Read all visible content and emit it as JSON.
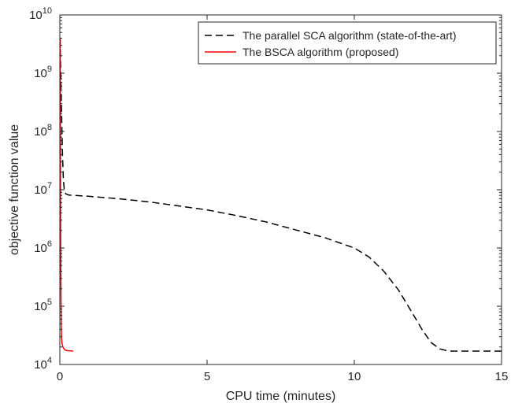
{
  "chart_data": {
    "type": "line",
    "title": "",
    "xlabel": "CPU time (minutes)",
    "ylabel": "objective function value",
    "xlim": [
      0,
      15
    ],
    "ylim": [
      10000,
      10000000000
    ],
    "yscale": "log",
    "x_ticks": [
      0,
      5,
      10,
      15
    ],
    "y_ticks": [
      {
        "value": 10000,
        "base": "10",
        "exp": "4"
      },
      {
        "value": 100000,
        "base": "10",
        "exp": "5"
      },
      {
        "value": 1000000,
        "base": "10",
        "exp": "6"
      },
      {
        "value": 10000000,
        "base": "10",
        "exp": "7"
      },
      {
        "value": 100000000,
        "base": "10",
        "exp": "8"
      },
      {
        "value": 1000000000,
        "base": "10",
        "exp": "9"
      },
      {
        "value": 10000000000,
        "base": "10",
        "exp": "10"
      }
    ],
    "grid": false,
    "legend_position": "top-right",
    "series": [
      {
        "name": "The parallel SCA algorithm (state-of-the-art)",
        "color": "#000000",
        "style": "dashed",
        "x": [
          0.01,
          0.03,
          0.06,
          0.09,
          0.12,
          0.15,
          0.2,
          0.3,
          1,
          2,
          3,
          4,
          5,
          6,
          7,
          8,
          9,
          10,
          10.5,
          11,
          11.5,
          12,
          12.3,
          12.6,
          12.9,
          13.1,
          13.3,
          13.5,
          14,
          14.5,
          15
        ],
        "y": [
          3900000000,
          1000000000,
          200000000,
          40000000,
          15000000,
          10000000,
          8500000,
          8100000,
          7700000,
          7000000,
          6200000,
          5300000,
          4500000,
          3600000,
          2800000,
          2050000,
          1500000,
          1000000,
          700000,
          400000,
          190000,
          72000,
          40000,
          24000,
          18500,
          17500,
          17000,
          17000,
          17000,
          17000,
          17000
        ]
      },
      {
        "name": "The BSCA algorithm (proposed)",
        "color": "#ff0000",
        "style": "solid",
        "x": [
          0.01,
          0.02,
          0.03,
          0.04,
          0.05,
          0.06,
          0.08,
          0.12,
          0.2,
          0.3,
          0.45
        ],
        "y": [
          3800000000,
          100000000,
          1000000,
          120000,
          45000,
          28000,
          22000,
          19000,
          17500,
          17200,
          17000
        ]
      }
    ]
  }
}
